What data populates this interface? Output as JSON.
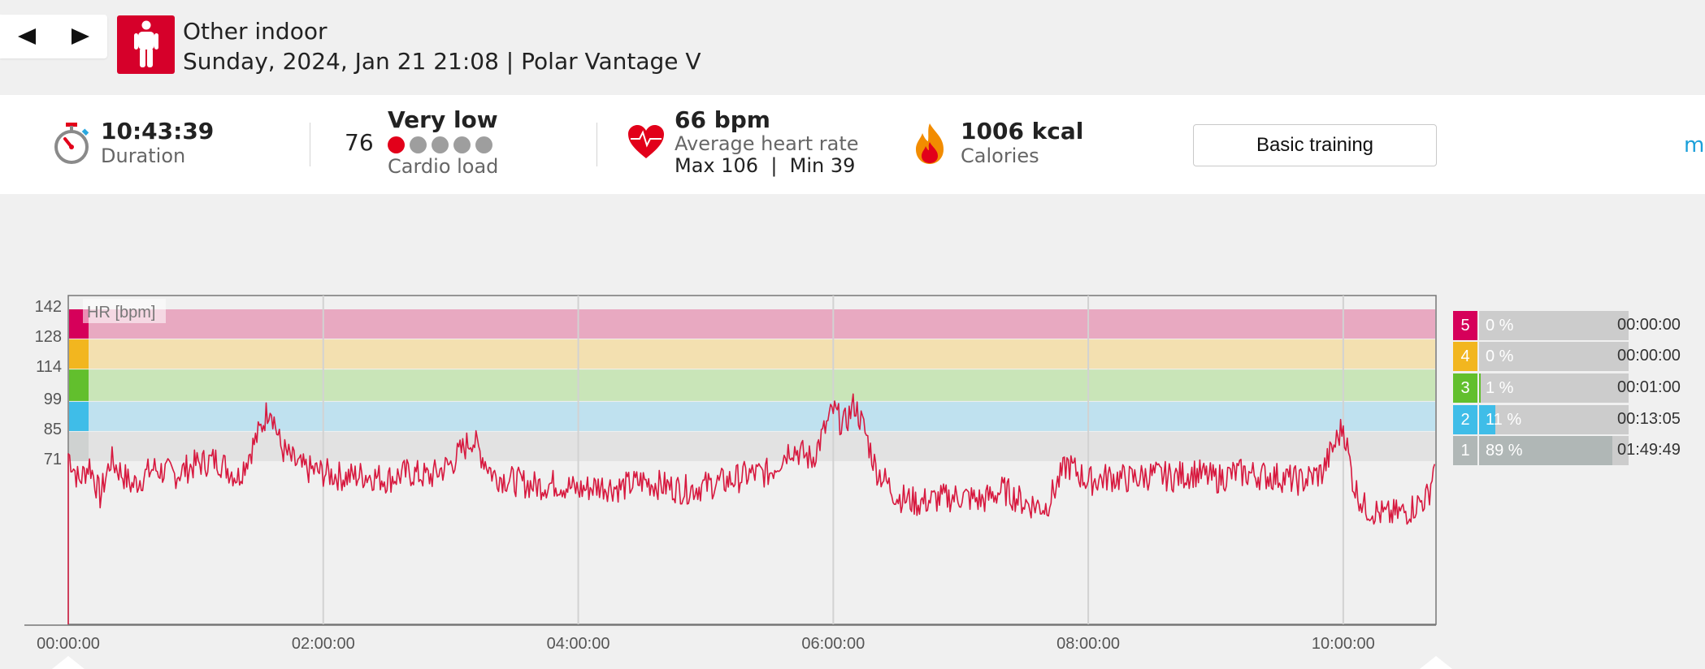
{
  "header": {
    "prev_icon": "triangle-left",
    "next_icon": "triangle-right",
    "sport_icon": "person-standing",
    "title": "Other indoor",
    "subtitle": "Sunday, 2024, Jan 21 21:08 | Polar Vantage V"
  },
  "summary": {
    "duration": {
      "value": "10:43:39",
      "label": "Duration",
      "icon": "stopwatch"
    },
    "cardio_load": {
      "number": "76",
      "level": "Very low",
      "label": "Cardio load",
      "dots_active": 1,
      "dots_total": 5
    },
    "heart_rate": {
      "value": "66 bpm",
      "label": "Average heart rate",
      "max_min": "Max 106  |  Min 39",
      "icon": "heart"
    },
    "calories": {
      "value": "1006 kcal",
      "label": "Calories",
      "icon": "flame"
    },
    "training_button": "Basic training",
    "more_link": "mo"
  },
  "chart_data": {
    "type": "line",
    "title": "HR [bpm]",
    "y_ticks": [
      "142",
      "128",
      "114",
      "99",
      "85",
      "71"
    ],
    "x_ticks": [
      "00:00:00",
      "02:00:00",
      "04:00:00",
      "06:00:00",
      "08:00:00",
      "10:00:00"
    ],
    "xlim_minutes": [
      0,
      643.65
    ],
    "ylim": [
      0,
      149
    ],
    "zones": [
      {
        "zone": 5,
        "min": 128,
        "max": 142,
        "color": "#e8a9c1"
      },
      {
        "zone": 4,
        "min": 114,
        "max": 128,
        "color": "#f3e0b0"
      },
      {
        "zone": 3,
        "min": 99,
        "max": 114,
        "color": "#c9e5b8"
      },
      {
        "zone": 2,
        "min": 85,
        "max": 99,
        "color": "#bfe1ef"
      },
      {
        "zone": 1,
        "min": 71,
        "max": 85,
        "color": "#e2e2e2"
      }
    ],
    "series": [
      {
        "color": "#d7193f",
        "x_minutes": [
          0,
          5,
          10,
          15,
          20,
          30,
          40,
          50,
          60,
          70,
          80,
          90,
          95,
          100,
          105,
          110,
          120,
          130,
          140,
          150,
          160,
          170,
          180,
          190,
          200,
          210,
          220,
          230,
          240,
          250,
          260,
          270,
          280,
          290,
          300,
          310,
          320,
          330,
          340,
          350,
          360,
          365,
          370,
          375,
          380,
          390,
          400,
          410,
          420,
          430,
          440,
          450,
          460,
          470,
          480,
          490,
          500,
          510,
          520,
          530,
          540,
          550,
          560,
          570,
          580,
          590,
          600,
          605,
          610,
          620,
          630,
          640,
          643
        ],
        "values": [
          75,
          62,
          70,
          55,
          72,
          60,
          68,
          65,
          70,
          72,
          64,
          85,
          98,
          78,
          72,
          68,
          66,
          64,
          65,
          63,
          66,
          64,
          70,
          82,
          65,
          62,
          60,
          61,
          58,
          60,
          59,
          62,
          60,
          58,
          60,
          62,
          65,
          66,
          78,
          72,
          95,
          88,
          98,
          85,
          68,
          55,
          52,
          54,
          55,
          53,
          58,
          52,
          50,
          70,
          62,
          64,
          63,
          65,
          64,
          66,
          63,
          66,
          65,
          64,
          62,
          66,
          88,
          60,
          50,
          46,
          48,
          55,
          70
        ]
      }
    ]
  },
  "zones_table": [
    {
      "zone": "5",
      "percent": "0 %",
      "fraction": 0.0,
      "time": "00:00:00",
      "color": "#d6005a"
    },
    {
      "zone": "4",
      "percent": "0 %",
      "fraction": 0.0,
      "time": "00:00:00",
      "color": "#f2b61f"
    },
    {
      "zone": "3",
      "percent": "1 %",
      "fraction": 0.01,
      "time": "00:01:00",
      "color": "#62bf2d"
    },
    {
      "zone": "2",
      "percent": "11 %",
      "fraction": 0.11,
      "time": "00:13:05",
      "color": "#3fbde8"
    },
    {
      "zone": "1",
      "percent": "89 %",
      "fraction": 0.89,
      "time": "01:49:49",
      "color": "#b0b7b6"
    }
  ]
}
